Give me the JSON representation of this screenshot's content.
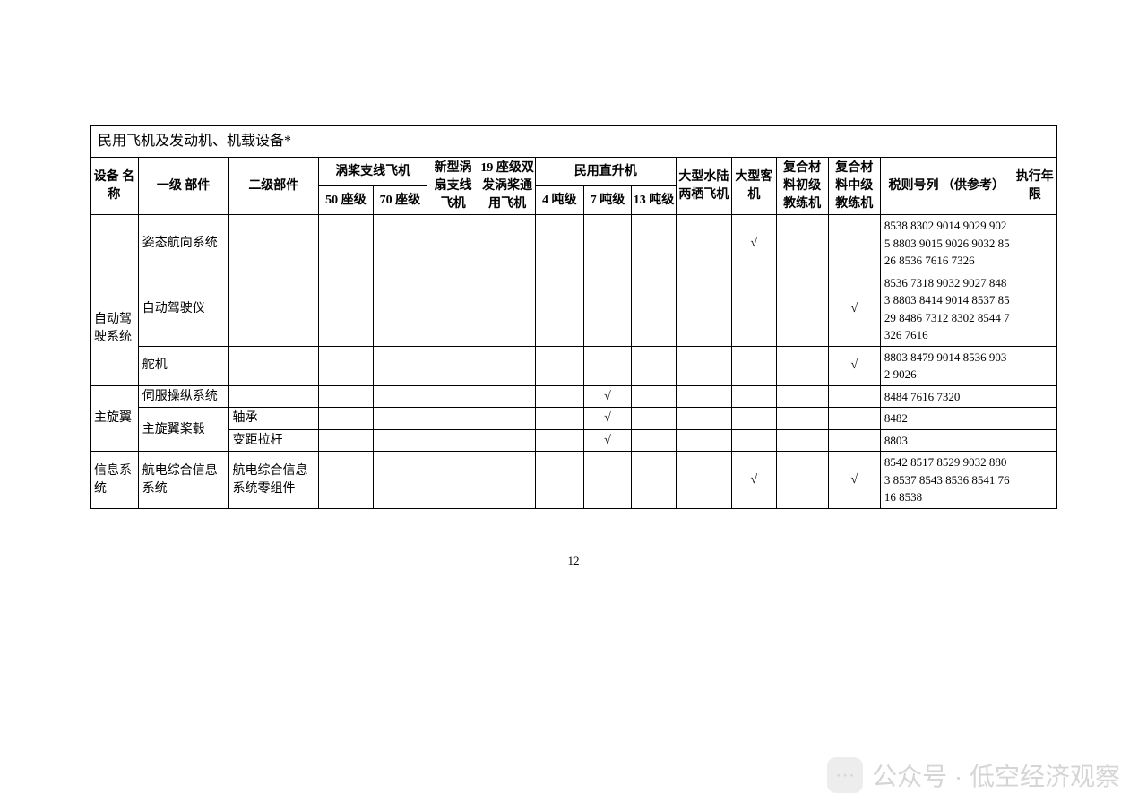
{
  "table": {
    "title": "民用飞机及发动机、机载设备*",
    "headers": {
      "equip_name": "设备\n名称",
      "level1": "一级\n部件",
      "level2": "二级部件",
      "turboprop_group": "涡桨支线飞机",
      "turboprop_50": "50 座级",
      "turboprop_70": "70 座级",
      "new_turbofan": "新型涡扇支线飞机",
      "seat19": "19 座级双发涡桨通用飞机",
      "heli_group": "民用直升机",
      "heli_4t": "4 吨级",
      "heli_7t": "7 吨级",
      "heli_13t": "13 吨级",
      "amphibious": "大型水陆两栖飞机",
      "large_jet": "大型客机",
      "comp_primary": "复合材料初级教练机",
      "comp_inter": "复合材料中级教练机",
      "tax_code": "税则号列\n（供参考）",
      "exec_year": "执行年限"
    },
    "rows": [
      {
        "equip": "",
        "l1": "姿态航向系统",
        "l2": "",
        "cols": [
          "",
          "",
          "",
          "",
          "",
          "",
          "",
          "",
          "√",
          "",
          ""
        ],
        "tax": "8538 8302 9014 9029 9025 8803 9015 9026 9032 8526 8536 7616 7326",
        "year": ""
      },
      {
        "equip": "自动驾驶系统",
        "equip_rowspan": 2,
        "l1": "自动驾驶仪",
        "l2": "",
        "cols": [
          "",
          "",
          "",
          "",
          "",
          "",
          "",
          "",
          "",
          "",
          "√"
        ],
        "tax": "8536 7318 9032 9027 8483 8803 8414 9014 8537 8529 8486 7312 8302 8544 7326 7616",
        "year": ""
      },
      {
        "l1": "舵机",
        "l2": "",
        "cols": [
          "",
          "",
          "",
          "",
          "",
          "",
          "",
          "",
          "",
          "",
          "√"
        ],
        "tax": "8803 8479 9014 8536 9032 9026",
        "year": ""
      },
      {
        "equip": "主旋翼",
        "equip_rowspan": 3,
        "l1": "伺服操纵系统",
        "l1_rowspan": 1,
        "l2": "",
        "cols": [
          "",
          "",
          "",
          "",
          "",
          "√",
          "",
          "",
          "",
          "",
          ""
        ],
        "tax": "8484 7616 7320",
        "year": ""
      },
      {
        "l1": "主旋翼桨毂",
        "l1_rowspan": 2,
        "l2": "轴承",
        "cols": [
          "",
          "",
          "",
          "",
          "",
          "√",
          "",
          "",
          "",
          "",
          ""
        ],
        "tax": "8482",
        "year": ""
      },
      {
        "l2": "变距拉杆",
        "cols": [
          "",
          "",
          "",
          "",
          "",
          "√",
          "",
          "",
          "",
          "",
          ""
        ],
        "tax": "8803",
        "year": ""
      },
      {
        "equip": "信息系统",
        "l1": "航电综合信息系统",
        "l2": "航电综合信息系统零组件",
        "cols": [
          "",
          "",
          "",
          "",
          "",
          "",
          "",
          "",
          "√",
          "",
          "√"
        ],
        "tax": "8542 8517 8529 9032 8803 8537 8543 8536 8541 7616 8538",
        "year": ""
      }
    ]
  },
  "page_number": "12",
  "watermark": {
    "icon_glyph": "⋯",
    "text": "公众号 · 低空经济观察"
  },
  "colwidths": {
    "c0": 48,
    "c1": 90,
    "c2": 90,
    "c3": 54,
    "c4": 54,
    "c5": 52,
    "c6": 56,
    "c7": 48,
    "c8": 48,
    "c9": 44,
    "c10": 56,
    "c11": 44,
    "c12": 52,
    "c13": 52,
    "c14": 132,
    "c15": 44
  }
}
